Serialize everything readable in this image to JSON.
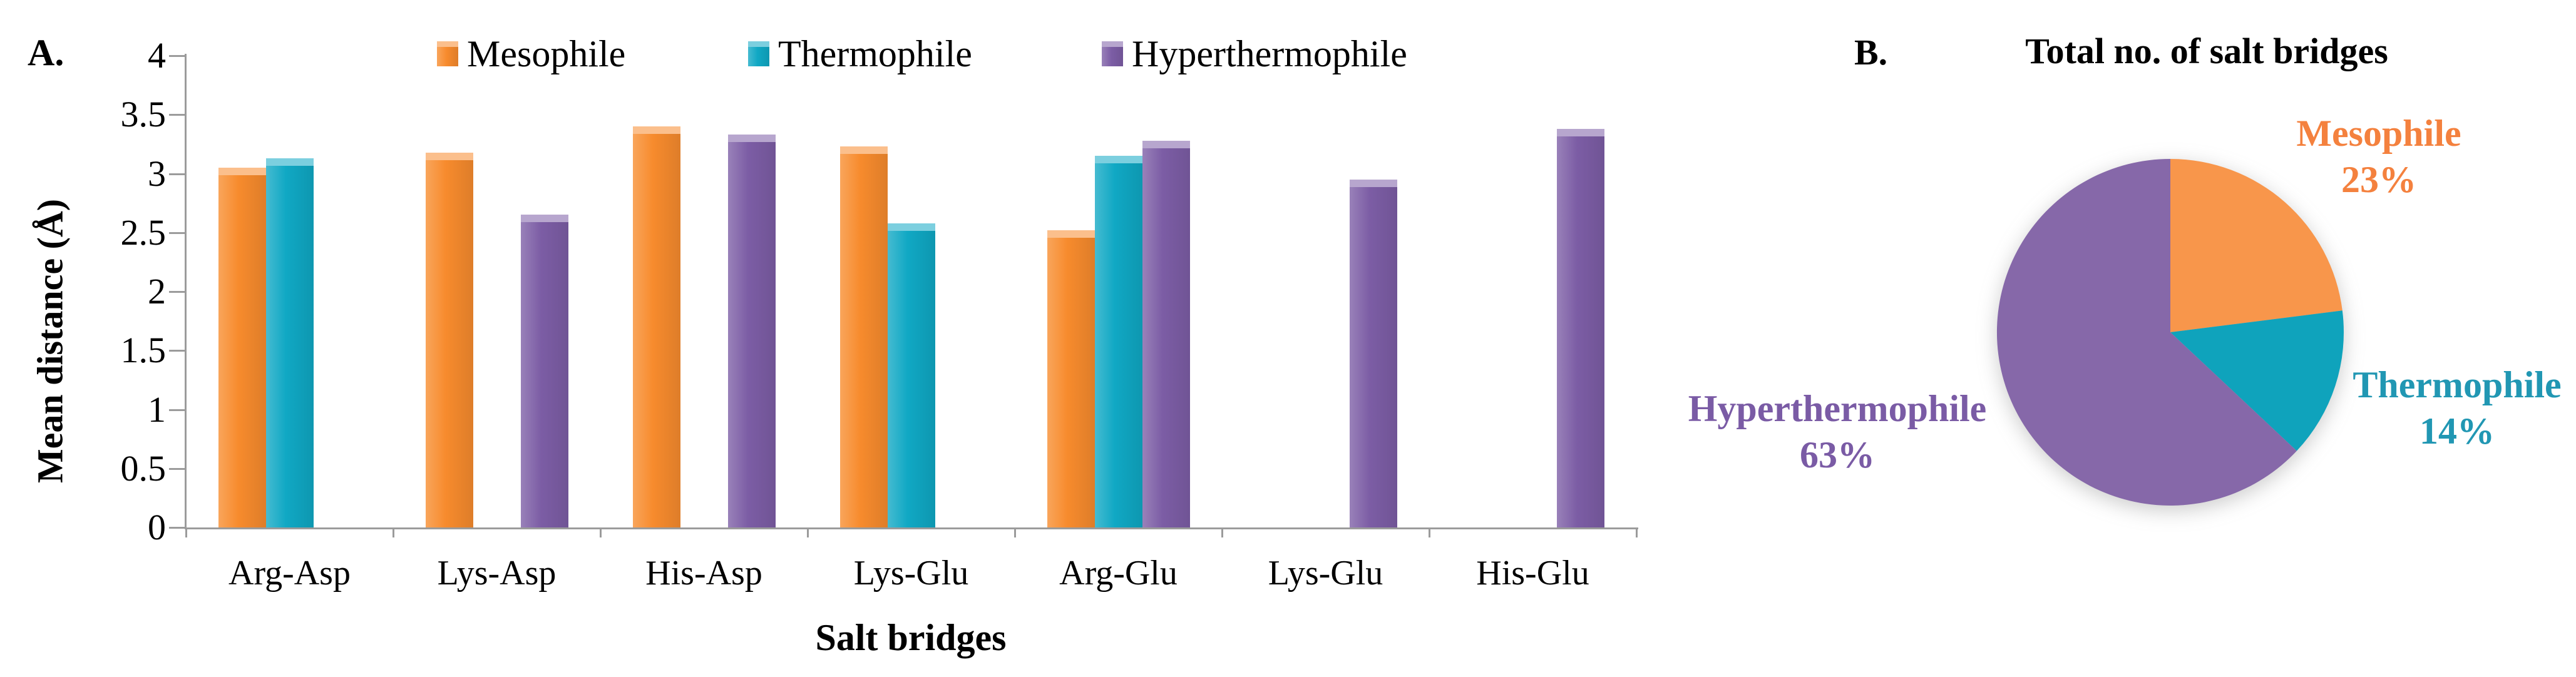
{
  "panelA": {
    "label": "A.",
    "axes": {
      "y_title": "Mean distance (Å)",
      "x_title": "Salt bridges",
      "ytick_labels": [
        "0",
        "0.5",
        "1",
        "1.5",
        "2",
        "2.5",
        "3",
        "3.5",
        "4"
      ]
    }
  },
  "panelB": {
    "label": "B.",
    "title": "Total no. of salt bridges"
  },
  "chart_data": [
    {
      "type": "bar",
      "title": "",
      "xlabel": "Salt bridges",
      "ylabel": "Mean distance (Å)",
      "ylim": [
        0,
        4
      ],
      "yticks": [
        0,
        0.5,
        1,
        1.5,
        2,
        2.5,
        3,
        3.5,
        4
      ],
      "grid": false,
      "legend_position": "top",
      "categories": [
        "Arg-Asp",
        "Lys-Asp",
        "His-Asp",
        "Lys-Glu",
        "Arg-Glu",
        "Lys-Glu",
        "His-Glu"
      ],
      "series": [
        {
          "name": "Mesophile",
          "color": "#F78B2D",
          "values": [
            3.05,
            3.18,
            3.4,
            3.23,
            2.52,
            null,
            null
          ]
        },
        {
          "name": "Thermophile",
          "color": "#10A8C4",
          "values": [
            3.13,
            null,
            null,
            2.58,
            3.15,
            null,
            null
          ]
        },
        {
          "name": "Hyperthermophile",
          "color": "#7C5DA5",
          "values": [
            null,
            2.65,
            3.33,
            null,
            3.28,
            2.95,
            3.38
          ]
        }
      ]
    },
    {
      "type": "pie",
      "title": "Total no. of salt bridges",
      "start_angle_deg": 0,
      "direction": "clockwise",
      "slices": [
        {
          "name": "Mesophile",
          "pct": 23,
          "pct_label": "23%",
          "color": "#F8964B",
          "label_color": "#F4813E"
        },
        {
          "name": "Thermophile",
          "pct": 14,
          "pct_label": "14%",
          "color": "#0FA3BC",
          "label_color": "#2197B3"
        },
        {
          "name": "Hyperthermophile",
          "pct": 63,
          "pct_label": "63%",
          "color": "#8668A9",
          "label_color": "#7A5BA5"
        }
      ]
    }
  ]
}
